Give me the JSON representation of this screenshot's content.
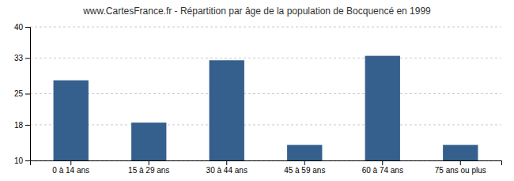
{
  "chart_data": {
    "type": "bar",
    "title": "www.CartesFrance.fr - Répartition par âge de la population de Bocquencé en 1999",
    "categories": [
      "0 à 14 ans",
      "15 à 29 ans",
      "30 à 44 ans",
      "45 à 59 ans",
      "60 à 74 ans",
      "75 ans ou plus"
    ],
    "values": [
      28.0,
      18.5,
      32.5,
      13.5,
      33.5,
      13.5
    ],
    "color": "#35608d",
    "ylim": [
      10,
      40
    ],
    "yticks": [
      10,
      18,
      25,
      33,
      40
    ],
    "grid": true
  }
}
